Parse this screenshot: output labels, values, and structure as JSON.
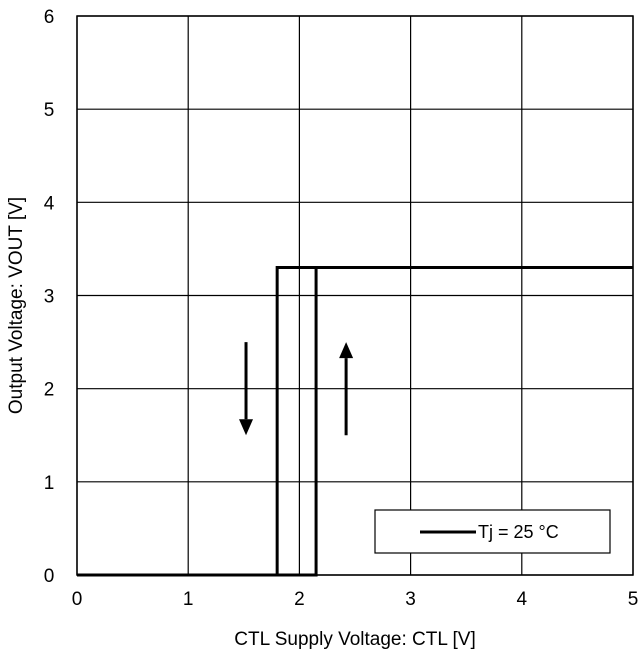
{
  "chart_data": {
    "type": "line",
    "xlabel": "CTL Supply Voltage: CTL [V]",
    "ylabel": "Output Voltage: VOUT [V]",
    "xlim": [
      0,
      5
    ],
    "ylim": [
      0,
      6
    ],
    "xticks": [
      "0",
      "1",
      "2",
      "3",
      "4",
      "5"
    ],
    "yticks": [
      "0",
      "1",
      "2",
      "3",
      "4",
      "5",
      "6"
    ],
    "grid": true,
    "legend_position": "bottom-right",
    "series": [
      {
        "name": "Tj = 25 °C",
        "color": "#000000",
        "rising": {
          "x": [
            0,
            2.15,
            2.15,
            5
          ],
          "y": [
            0,
            0,
            3.3,
            3.3
          ]
        },
        "falling": {
          "x": [
            5,
            1.8,
            1.8,
            0
          ],
          "y": [
            3.3,
            3.3,
            0,
            0
          ]
        }
      }
    ],
    "annotations": [
      {
        "type": "arrow",
        "direction": "down",
        "x": 1.52,
        "y_from": 2.5,
        "y_to": 1.5
      },
      {
        "type": "arrow",
        "direction": "up",
        "x": 2.42,
        "y_from": 1.5,
        "y_to": 2.5
      }
    ]
  }
}
